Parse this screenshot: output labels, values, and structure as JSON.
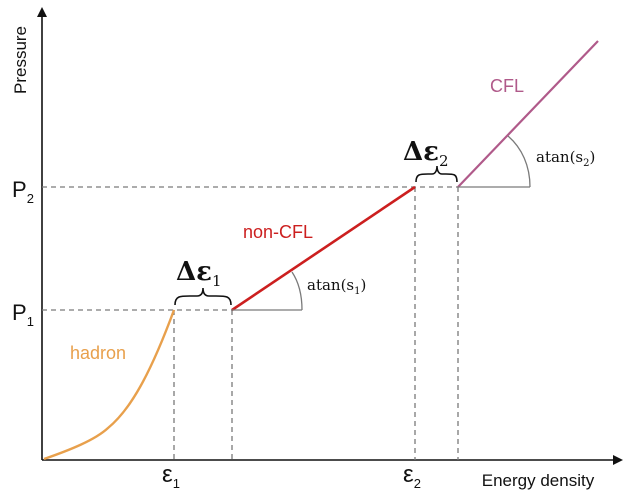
{
  "axes": {
    "y_label": "Pressure",
    "x_label": "Energy density",
    "x_ticks": {
      "eps1_base": "ε",
      "eps1_sub": "1",
      "eps2_base": "ε",
      "eps2_sub": "2"
    },
    "y_ticks": {
      "p1_base": "P",
      "p1_sub": "1",
      "p2_base": "P",
      "p2_sub": "2"
    }
  },
  "phases": {
    "hadron": {
      "label": "hadron",
      "color": "#e8a04c"
    },
    "non_cfl": {
      "label": "non-CFL",
      "color": "#cc1f1f"
    },
    "cfl": {
      "label": "CFL",
      "color": "#b05a8a"
    }
  },
  "annotations": {
    "gap1": {
      "delta": "Δε",
      "sub": "1"
    },
    "gap2": {
      "delta": "Δε",
      "sub": "2"
    },
    "slope1": {
      "prefix": "atan(s",
      "sub": "1",
      "suffix": ")"
    },
    "slope2": {
      "prefix": "atan(s",
      "sub": "2",
      "suffix": ")"
    }
  },
  "colors": {
    "axis": "#111111",
    "dashed": "#7a7a7a",
    "angle": "#7a7a7a",
    "text": "#111111"
  }
}
